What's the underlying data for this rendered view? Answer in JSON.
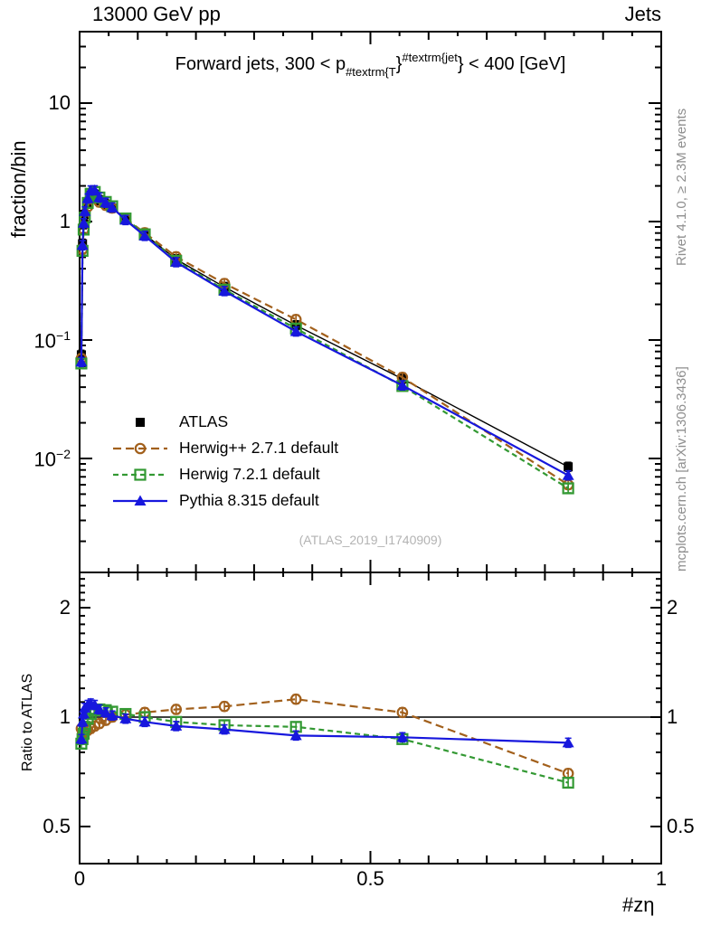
{
  "header": {
    "left": "13000 GeV pp",
    "right": "Jets"
  },
  "title": {
    "prefix": "Forward jets, 300 < p",
    "sub": "#textrm{T",
    "mid": "}",
    "sup": "#textrm{jet",
    "suffix": "} < 400 [GeV]"
  },
  "watermark": "(ATLAS_2019_I1740909)",
  "side_notes": {
    "top": "Rivet 4.1.0, ≥ 2.3M events",
    "bottom": "mcplots.cern.ch [arXiv:1306.3436]"
  },
  "axes": {
    "x_label": "#zη",
    "top_y_label": "fraction/bin",
    "ratio_y_label": "Ratio to ATLAS",
    "x_ticks": [
      {
        "label": "0",
        "v": 0
      },
      {
        "label": "0.5",
        "v": 0.5
      },
      {
        "label": "1",
        "v": 1
      }
    ],
    "top_y_ticks": [
      {
        "label": "10",
        "v": 10
      },
      {
        "label": "1",
        "v": 1
      },
      {
        "label": "10^-1",
        "v": 0.1
      },
      {
        "label": "10^-2",
        "v": 0.01
      }
    ],
    "ratio_y_ticks": [
      {
        "label": "2",
        "v": 2
      },
      {
        "label": "1",
        "v": 1
      },
      {
        "label": "0.5",
        "v": 0.5
      }
    ]
  },
  "chart_data": {
    "type": "line",
    "title": "Forward jets, 300 < pT(jet) < 400 [GeV]",
    "xlabel": "#zη",
    "ylabel_top": "fraction/bin",
    "ylabel_ratio": "Ratio to ATLAS",
    "xlim": [
      0,
      1
    ],
    "ylim_top": [
      0.0011,
      40
    ],
    "ylim_ratio": [
      0.4,
      2.5
    ],
    "yscale_top": "log10",
    "yscale_ratio": "log2",
    "grid": false,
    "legend_position": "center-left",
    "x": [
      0.003,
      0.005,
      0.007,
      0.009,
      0.014,
      0.019,
      0.026,
      0.034,
      0.045,
      0.056,
      0.079,
      0.112,
      0.166,
      0.249,
      0.372,
      0.555,
      0.84
    ],
    "series": [
      {
        "name": "ATLAS",
        "color": "#000000",
        "marker": "square-filled",
        "line": "solid",
        "dash": "",
        "width": 1.4,
        "values": [
          0.075,
          0.65,
          0.95,
          1.15,
          1.45,
          1.68,
          1.7,
          1.52,
          1.4,
          1.3,
          1.04,
          0.78,
          0.48,
          0.28,
          0.133,
          0.047,
          0.0085
        ],
        "ratio": [
          1,
          1,
          1,
          1,
          1,
          1,
          1,
          1,
          1,
          1,
          1,
          1,
          1,
          1,
          1,
          1,
          1
        ]
      },
      {
        "name": "Herwig++ 2.7.1 default",
        "color": "#a2601c",
        "marker": "circle-open",
        "line": "dashed",
        "dash": "9,5",
        "width": 2.2,
        "values": [
          0.0698,
          0.585,
          0.855,
          1.047,
          1.334,
          1.562,
          1.607,
          1.459,
          1.372,
          1.3,
          1.056,
          0.803,
          0.504,
          0.3,
          0.149,
          0.0484,
          0.006
        ],
        "ratio": [
          0.93,
          0.9,
          0.9,
          0.91,
          0.92,
          0.93,
          0.945,
          0.96,
          0.98,
          1.0,
          1.015,
          1.03,
          1.05,
          1.07,
          1.12,
          1.03,
          0.7
        ]
      },
      {
        "name": "Herwig 7.2.1 default",
        "color": "#339933",
        "marker": "square-open",
        "line": "dashed",
        "dash": "6,4",
        "width": 2.2,
        "values": [
          0.0634,
          0.566,
          0.855,
          1.081,
          1.436,
          1.714,
          1.777,
          1.596,
          1.463,
          1.346,
          1.061,
          0.78,
          0.466,
          0.266,
          0.125,
          0.0409,
          0.0056
        ],
        "ratio": [
          0.845,
          0.87,
          0.9,
          0.94,
          0.99,
          1.02,
          1.045,
          1.05,
          1.045,
          1.035,
          1.02,
          1.0,
          0.97,
          0.95,
          0.94,
          0.87,
          0.66
        ]
      },
      {
        "name": "Pythia 8.315 default",
        "color": "#1717dd",
        "marker": "triangle-filled",
        "line": "solid",
        "dash": "",
        "width": 2.2,
        "values": [
          0.0653,
          0.631,
          0.969,
          1.219,
          1.566,
          1.831,
          1.836,
          1.596,
          1.442,
          1.313,
          1.03,
          0.757,
          0.454,
          0.259,
          0.118,
          0.0414,
          0.0072
        ],
        "ratio": [
          0.87,
          0.97,
          1.02,
          1.06,
          1.08,
          1.09,
          1.08,
          1.05,
          1.03,
          1.01,
          0.99,
          0.97,
          0.945,
          0.925,
          0.89,
          0.88,
          0.85
        ]
      }
    ]
  }
}
